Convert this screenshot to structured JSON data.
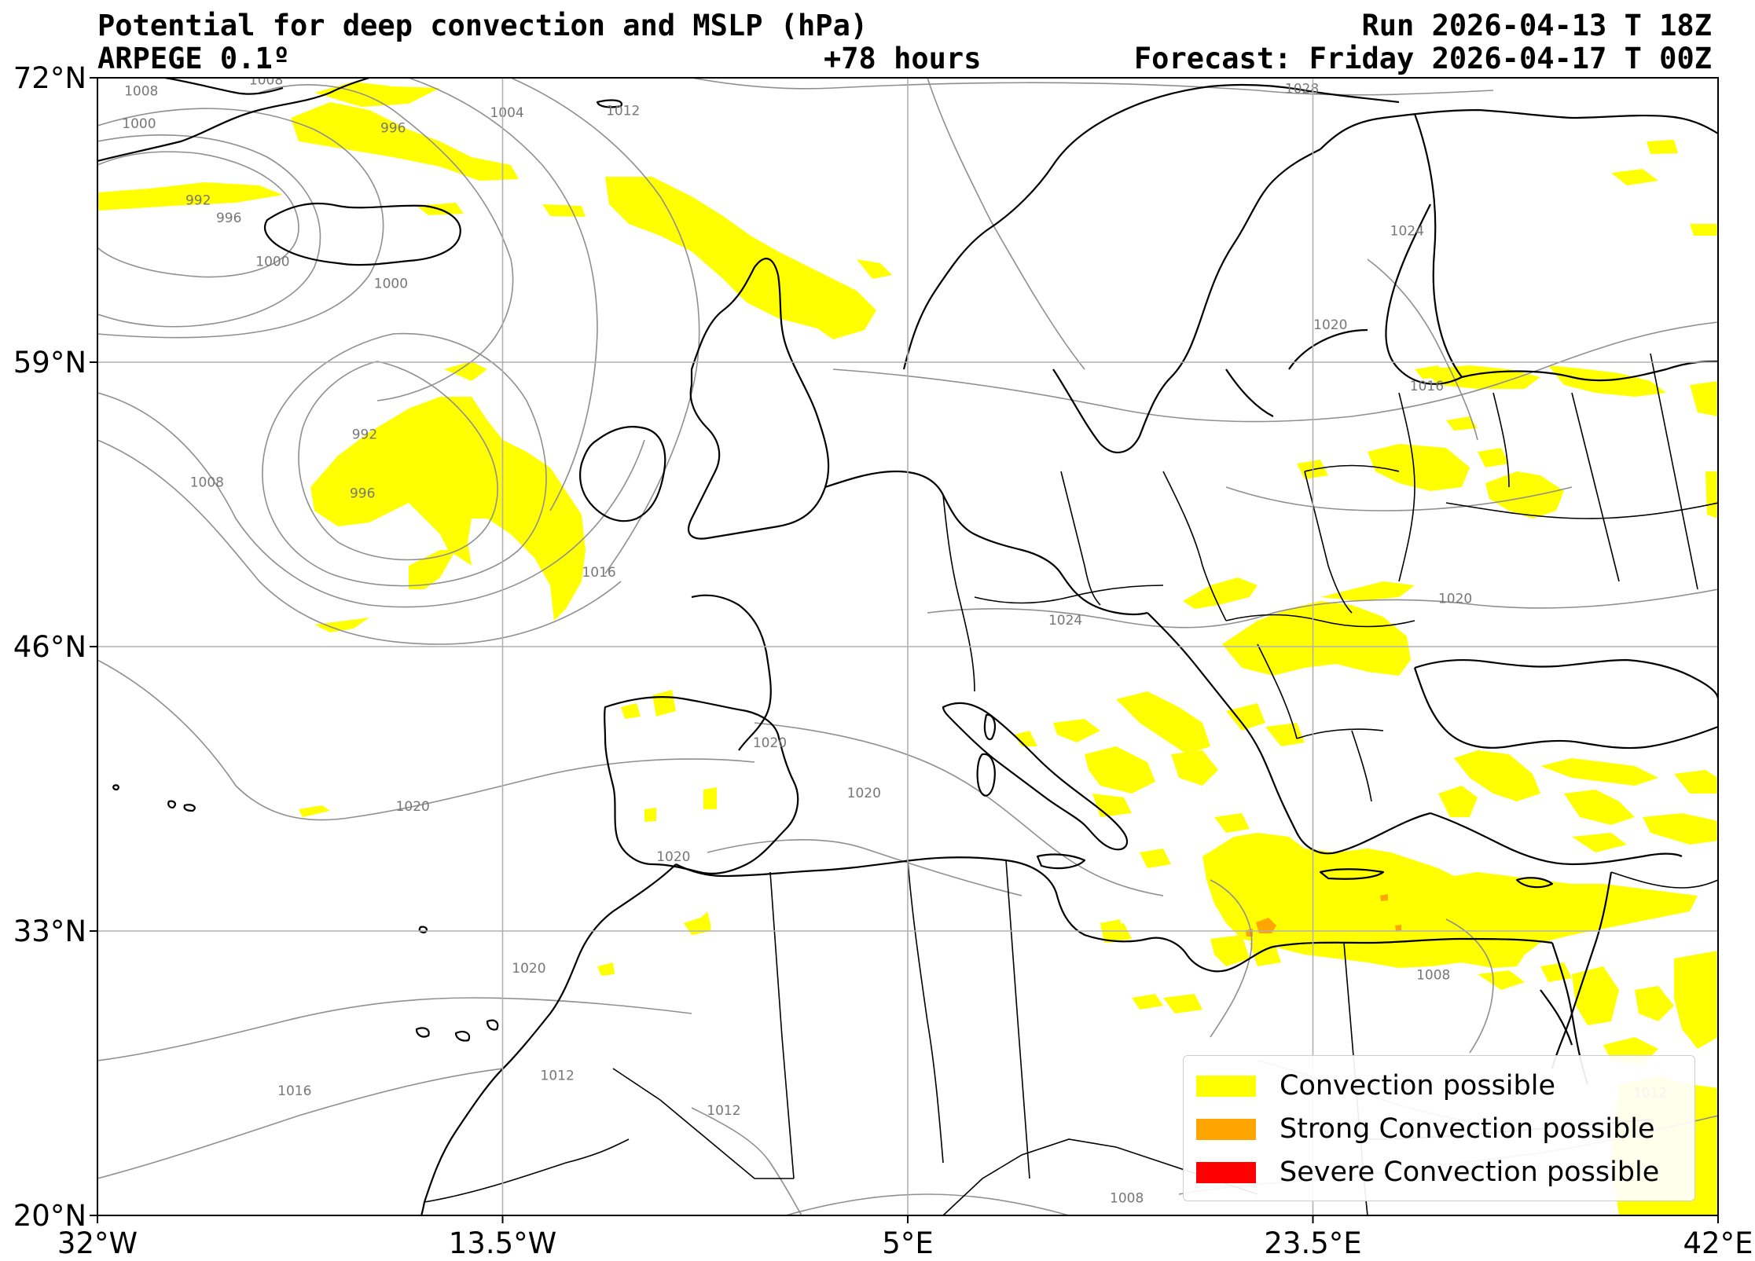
{
  "header": {
    "title": "Potential for deep convection and MSLP (hPa)",
    "model": "ARPEGE 0.1º",
    "lead_time": "+78 hours",
    "run": "Run 2026-04-13 T 18Z",
    "forecast": "Forecast: Friday 2026-04-17 T 00Z"
  },
  "map": {
    "lon_range": [
      -32,
      42
    ],
    "lat_range": [
      20,
      72
    ],
    "x_ticks": [
      {
        "lon": -32,
        "label": "32°W"
      },
      {
        "lon": -13.5,
        "label": "13.5°W"
      },
      {
        "lon": 5,
        "label": "5°E"
      },
      {
        "lon": 23.5,
        "label": "23.5°E"
      },
      {
        "lon": 42,
        "label": "42°E"
      }
    ],
    "y_ticks": [
      {
        "lat": 72,
        "label": "72°N"
      },
      {
        "lat": 59,
        "label": "59°N"
      },
      {
        "lat": 46,
        "label": "46°N"
      },
      {
        "lat": 33,
        "label": "33°N"
      },
      {
        "lat": 20,
        "label": "20°N"
      }
    ],
    "gridlines": true,
    "isobar_labels": [
      {
        "text": "1008",
        "lon": -30.0,
        "lat": 71.2
      },
      {
        "text": "1008",
        "lon": -24.3,
        "lat": 71.7
      },
      {
        "text": "1000",
        "lon": -30.1,
        "lat": 69.7
      },
      {
        "text": "996",
        "lon": -18.5,
        "lat": 69.5
      },
      {
        "text": "1004",
        "lon": -13.3,
        "lat": 70.2
      },
      {
        "text": "1012",
        "lon": -8.0,
        "lat": 70.3
      },
      {
        "text": "992",
        "lon": -27.4,
        "lat": 66.2
      },
      {
        "text": "996",
        "lon": -26.0,
        "lat": 65.4
      },
      {
        "text": "1000",
        "lon": -24.0,
        "lat": 63.4
      },
      {
        "text": "1000",
        "lon": -18.6,
        "lat": 62.4
      },
      {
        "text": "992",
        "lon": -19.8,
        "lat": 55.5
      },
      {
        "text": "1008",
        "lon": -27.0,
        "lat": 53.3
      },
      {
        "text": "996",
        "lon": -19.9,
        "lat": 52.8
      },
      {
        "text": "1016",
        "lon": -9.1,
        "lat": 49.2
      },
      {
        "text": "1028",
        "lon": 23.0,
        "lat": 71.3
      },
      {
        "text": "1024",
        "lon": 27.8,
        "lat": 64.8
      },
      {
        "text": "1020",
        "lon": 24.3,
        "lat": 60.5
      },
      {
        "text": "1016",
        "lon": 28.7,
        "lat": 57.7
      },
      {
        "text": "1024",
        "lon": 12.2,
        "lat": 47.0
      },
      {
        "text": "1020",
        "lon": 30.0,
        "lat": 48.0
      },
      {
        "text": "1020",
        "lon": -1.3,
        "lat": 41.4
      },
      {
        "text": "1020",
        "lon": -17.6,
        "lat": 38.5
      },
      {
        "text": "1020",
        "lon": 3.0,
        "lat": 39.1
      },
      {
        "text": "1020",
        "lon": -5.7,
        "lat": 36.2
      },
      {
        "text": "1020",
        "lon": -12.3,
        "lat": 31.1
      },
      {
        "text": "1008",
        "lon": 29.0,
        "lat": 30.8
      },
      {
        "text": "1016",
        "lon": -23.0,
        "lat": 25.5
      },
      {
        "text": "1012",
        "lon": -11.0,
        "lat": 26.2
      },
      {
        "text": "1012",
        "lon": -3.4,
        "lat": 24.6
      },
      {
        "text": "1008",
        "lon": 15.0,
        "lat": 20.6
      },
      {
        "text": "1012",
        "lon": 38.9,
        "lat": 25.4
      }
    ]
  },
  "legend": {
    "items": [
      {
        "label": "Convection possible",
        "color": "#ffff00"
      },
      {
        "label": "Strong Convection possible",
        "color": "#ffa500"
      },
      {
        "label": "Severe Convection possible",
        "color": "#ff0000"
      }
    ]
  }
}
